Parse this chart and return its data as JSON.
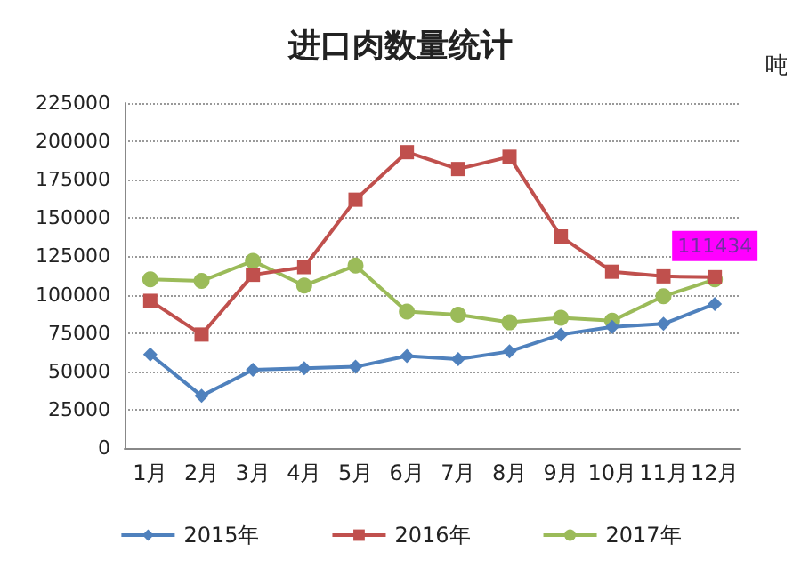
{
  "chart_data": {
    "type": "line",
    "title": "进口肉数量统计",
    "ylabel": "吨",
    "categories": [
      "1月",
      "2月",
      "3月",
      "4月",
      "5月",
      "6月",
      "7月",
      "8月",
      "9月",
      "10月",
      "11月",
      "12月"
    ],
    "series": [
      {
        "name": "2015年",
        "color": "#4f81bd",
        "marker": "diamond",
        "values": [
          61000,
          34000,
          51000,
          52000,
          53000,
          60000,
          58000,
          63000,
          74000,
          79000,
          81000,
          94000
        ]
      },
      {
        "name": "2016年",
        "color": "#c0504d",
        "marker": "square",
        "values": [
          96000,
          74000,
          113000,
          118000,
          162000,
          193000,
          182000,
          190000,
          138000,
          115000,
          112000,
          111434
        ],
        "value_labels": [
          null,
          null,
          null,
          null,
          null,
          null,
          null,
          null,
          null,
          null,
          null,
          "111434"
        ]
      },
      {
        "name": "2017年",
        "color": "#9bbb59",
        "marker": "circle",
        "values": [
          110000,
          109000,
          122000,
          106000,
          119000,
          89000,
          87000,
          82000,
          85000,
          83000,
          99000,
          110000
        ]
      }
    ],
    "ylim": [
      0,
      225000
    ],
    "yticks": [
      0,
      25000,
      50000,
      75000,
      100000,
      125000,
      150000,
      175000,
      200000,
      225000
    ],
    "grid": "y",
    "legend": "bottom"
  }
}
